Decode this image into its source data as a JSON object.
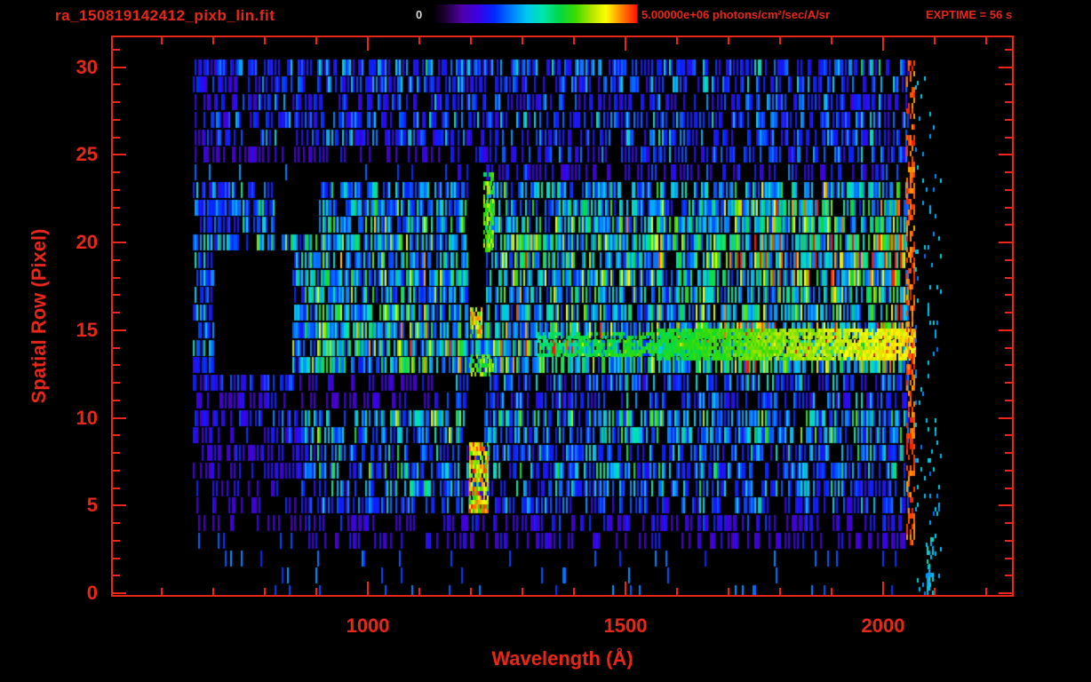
{
  "colors": {
    "accent": "#e8261a",
    "colorbar_zero_label": "#d8d8d8",
    "background": "#000000"
  },
  "chart_data": {
    "type": "heatmap",
    "title": "ra_150819142412_pixb_lin.fit",
    "xlabel": "Wavelength (Å)",
    "ylabel": "Spatial Row (Pixel)",
    "exptime_label": "EXPTIME = 56 s",
    "exptime_seconds": 56,
    "x_range": [
      505,
      2250
    ],
    "y_range": [
      -0.1,
      31.7
    ],
    "x_major_ticks": [
      1000,
      1500,
      2000
    ],
    "x_minor_tick_step": 100,
    "y_major_ticks": [
      0,
      5,
      10,
      15,
      20,
      25,
      30
    ],
    "y_minor_tick_step": 1,
    "colorbar": {
      "min": 0,
      "max": 5000000,
      "min_label": "0",
      "max_label": "5.00000e+06 photons/cm²/sec/A/sr",
      "units": "photons/cm²/sec/A/sr",
      "position": "top"
    },
    "description": "Noisy 2D far-UV spectrogram (spatial row vs wavelength) shown with a rainbow colormap on black; bright emission feature near 1200 Å with saturated black core blocks, a bright green-yellow horizontal streak near row 14 from ~1560-2060 Å, and a red saturated column near 2050 Å.",
    "data_extent": {
      "wavelength": [
        658,
        2112
      ],
      "rows": [
        0,
        30
      ]
    },
    "row_profile": [
      0.02,
      0.02,
      0.03,
      0.09,
      0.12,
      0.26,
      0.32,
      0.36,
      0.32,
      0.4,
      0.45,
      0.26,
      0.3,
      0.5,
      0.62,
      0.55,
      0.5,
      0.46,
      0.5,
      0.55,
      0.55,
      0.5,
      0.46,
      0.4,
      0.16,
      0.22,
      0.26,
      0.26,
      0.22,
      0.26,
      0.3
    ],
    "black_blocks": [
      [
        700,
        850,
        13,
        19.6
      ],
      [
        818,
        905,
        20.8,
        23.2
      ],
      [
        1193,
        1228,
        16,
        24
      ],
      [
        1193,
        1225,
        9,
        12
      ]
    ],
    "dim_blocks": [
      [
        860,
        1150,
        11,
        12.7,
        0.3
      ],
      [
        660,
        1160,
        24,
        25.6,
        0.35
      ],
      [
        658,
        870,
        3,
        11,
        0.5
      ]
    ],
    "boost_regions": [
      [
        1680,
        2062,
        13,
        23,
        1.35
      ],
      [
        1240,
        1460,
        13,
        23,
        1.15
      ],
      [
        900,
        1180,
        5,
        10,
        1.1
      ]
    ],
    "bright_features": [
      {
        "name": "lyman-alpha-bright-cluster",
        "x": [
          1196,
          1232
        ],
        "rows": [
          4.6,
          8.6
        ],
        "density": 0.8,
        "v": [
          0.6,
          1.0
        ]
      },
      {
        "name": "green-column-right-of-core",
        "x": [
          1224,
          1244
        ],
        "rows": [
          19.5,
          24
        ],
        "density": 0.65,
        "v": [
          0.5,
          0.8
        ]
      },
      {
        "name": "bright-spot-row15",
        "x": [
          1198,
          1222
        ],
        "rows": [
          14.7,
          16.3
        ],
        "density": 0.8,
        "v": [
          0.62,
          0.95
        ]
      },
      {
        "name": "bright-band-row13",
        "x": [
          1196,
          1244
        ],
        "rows": [
          12.4,
          13.6
        ],
        "density": 0.65,
        "v": [
          0.5,
          0.8
        ]
      },
      {
        "name": "faint-edge-line",
        "x": [
          2085,
          2096
        ],
        "rows": [
          0,
          3.2
        ],
        "density": 0.45,
        "v": [
          0.28,
          0.45
        ]
      }
    ],
    "streaks": [
      {
        "name": "bright-row14-streak",
        "x": [
          1560,
          2062
        ],
        "rows": [
          13.3,
          15.1
        ],
        "v_start": 0.5,
        "v_end": 0.78,
        "density": 0.85
      },
      {
        "name": "faint-row14-streak",
        "x": [
          1330,
          1560
        ],
        "rows": [
          13.5,
          14.9
        ],
        "v_start": 0.45,
        "v_end": 0.55,
        "density": 0.6
      }
    ],
    "red_column": {
      "x": [
        2044,
        2062
      ],
      "rows": [
        3,
        30.4
      ],
      "density": 0.5,
      "v": [
        0.88,
        1.0
      ]
    },
    "right_tail": {
      "x": [
        2062,
        2112
      ],
      "rows": [
        0,
        30
      ],
      "density": 0.05,
      "v": [
        0.25,
        0.4
      ]
    },
    "colormap_stops": [
      [
        0.0,
        "#000000"
      ],
      [
        0.06,
        "#1d0034"
      ],
      [
        0.14,
        "#5000a8"
      ],
      [
        0.22,
        "#3c00e6"
      ],
      [
        0.3,
        "#0028ff"
      ],
      [
        0.38,
        "#0078ff"
      ],
      [
        0.46,
        "#00c8f0"
      ],
      [
        0.54,
        "#00e6aa"
      ],
      [
        0.62,
        "#00d846"
      ],
      [
        0.7,
        "#3cdc00"
      ],
      [
        0.78,
        "#b4e600"
      ],
      [
        0.85,
        "#ffff00"
      ],
      [
        0.92,
        "#ff8c00"
      ],
      [
        1.0,
        "#ff1400"
      ]
    ],
    "seed": 42
  }
}
